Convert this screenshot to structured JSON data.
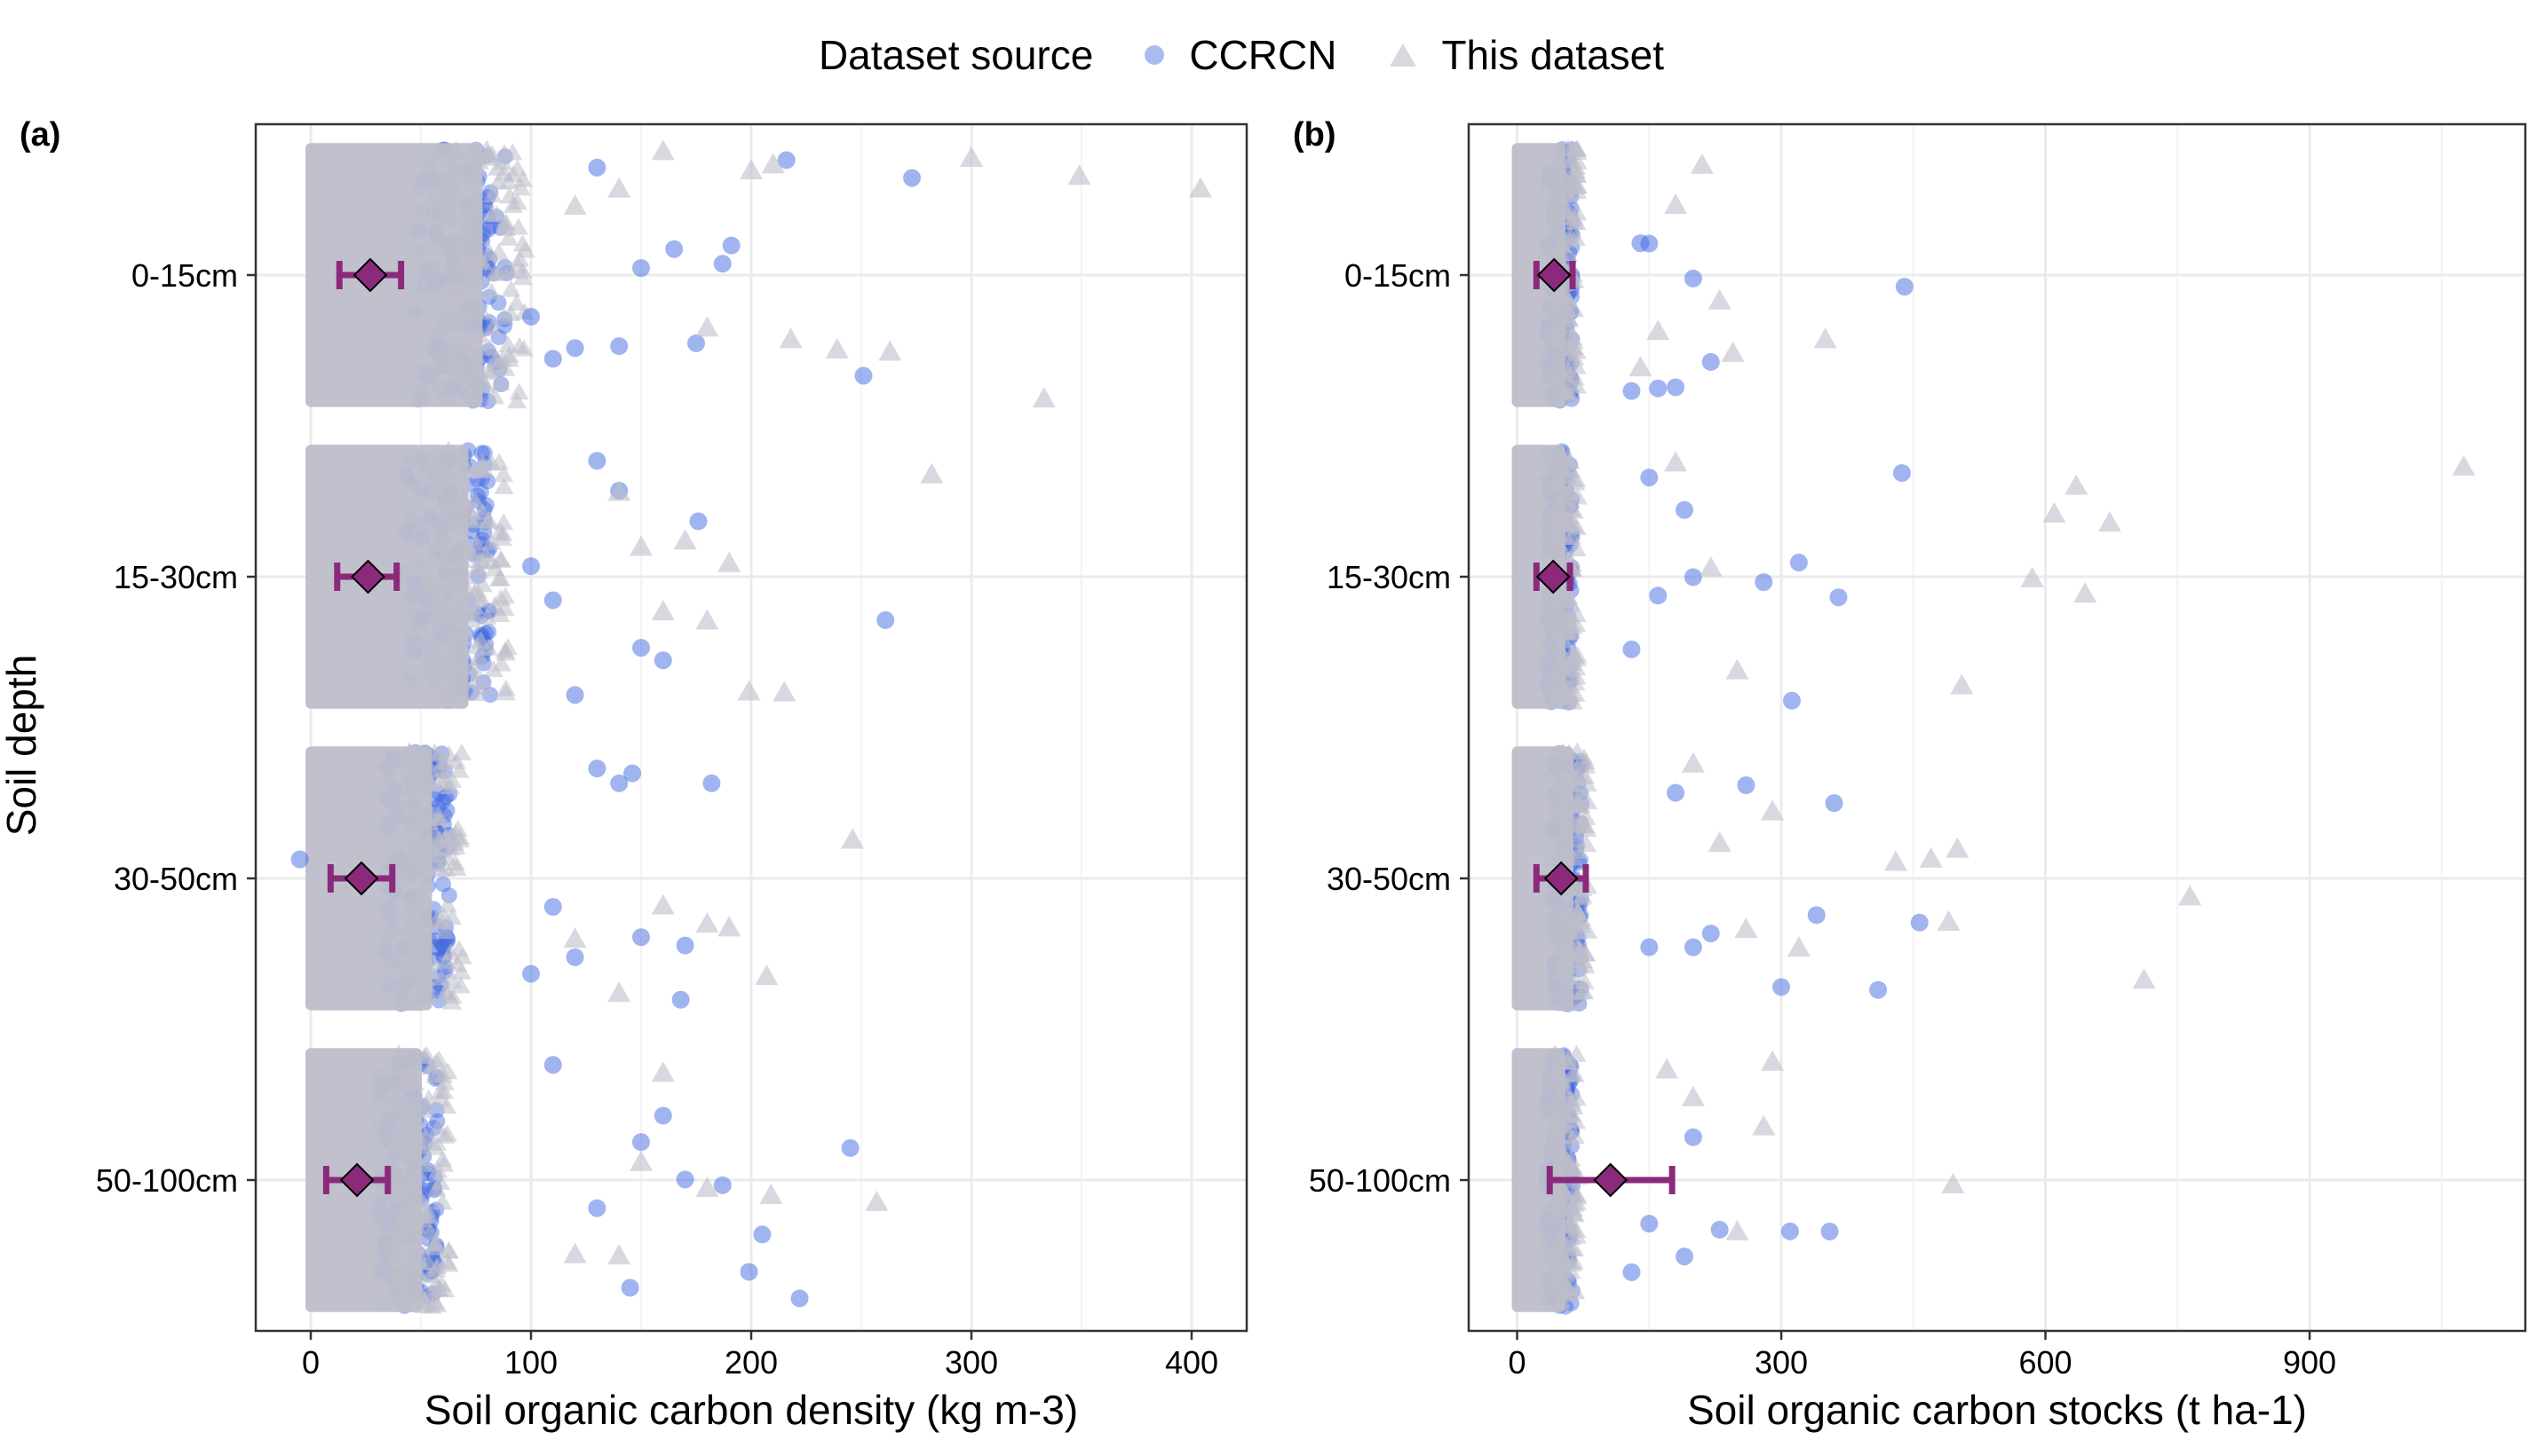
{
  "legend": {
    "title": "Dataset source",
    "items": [
      {
        "label": "CCRCN",
        "shape": "circle",
        "color": "#4169E1"
      },
      {
        "label": "This dataset",
        "shape": "triangle",
        "color": "#BFBFCC"
      }
    ]
  },
  "y_axis_title": "Soil depth",
  "colors": {
    "ccrcn": "#4169E1",
    "this_dataset": "#BEBECB",
    "summary": "#8B2A7A",
    "grid": "#EBEBEB"
  },
  "chart_data": [
    {
      "type": "scatter",
      "panel_label": "(a)",
      "xlabel": "Soil organic carbon density (kg m-3)",
      "ylabel": "Soil depth",
      "categories": [
        "0-15cm",
        "15-30cm",
        "30-50cm",
        "50-100cm"
      ],
      "xlim": [
        -25,
        425
      ],
      "xticks": [
        0,
        100,
        200,
        300,
        400
      ],
      "grid": true,
      "dense_range": [
        [
          0,
          85
        ],
        [
          0,
          78
        ],
        [
          0,
          60
        ],
        [
          0,
          55
        ]
      ],
      "summary": [
        {
          "category": "0-15cm",
          "mean": 27,
          "lo": 13,
          "hi": 41
        },
        {
          "category": "15-30cm",
          "mean": 26,
          "lo": 12,
          "hi": 39
        },
        {
          "category": "30-50cm",
          "mean": 23,
          "lo": 9,
          "hi": 37
        },
        {
          "category": "50-100cm",
          "mean": 21,
          "lo": 7,
          "hi": 35
        }
      ],
      "outliers": [
        {
          "category": "0-15cm",
          "series": "CCRCN",
          "x": [
            191,
            216,
            251,
            273,
            187,
            110,
            130,
            150,
            100,
            165,
            140,
            175,
            120
          ]
        },
        {
          "category": "0-15cm",
          "series": "This dataset",
          "x": [
            218,
            263,
            300,
            333,
            349,
            404,
            239,
            210,
            160,
            180,
            140,
            120,
            200
          ]
        },
        {
          "category": "15-30cm",
          "series": "CCRCN",
          "x": [
            176,
            261,
            150,
            130,
            110,
            140,
            120,
            100,
            160
          ]
        },
        {
          "category": "15-30cm",
          "series": "This dataset",
          "x": [
            282,
            215,
            199,
            180,
            160,
            190,
            150,
            140,
            170
          ]
        },
        {
          "category": "30-50cm",
          "series": "CCRCN",
          "x": [
            182,
            168,
            146,
            130,
            110,
            150,
            100,
            120,
            170,
            140,
            -5
          ]
        },
        {
          "category": "30-50cm",
          "series": "This dataset",
          "x": [
            246,
            207,
            190,
            180,
            160,
            140,
            120
          ]
        },
        {
          "category": "50-100cm",
          "series": "CCRCN",
          "x": [
            245,
            222,
            205,
            199,
            187,
            170,
            160,
            150,
            130,
            110,
            145
          ]
        },
        {
          "category": "50-100cm",
          "series": "This dataset",
          "x": [
            257,
            209,
            180,
            160,
            140,
            150,
            120
          ]
        }
      ]
    },
    {
      "type": "scatter",
      "panel_label": "(b)",
      "xlabel": "Soil organic carbon stocks (t ha-1)",
      "ylabel": "Soil depth",
      "categories": [
        "0-15cm",
        "15-30cm",
        "30-50cm",
        "50-100cm"
      ],
      "xlim": [
        -55,
        1145
      ],
      "xticks": [
        0,
        300,
        600,
        900
      ],
      "grid": true,
      "dense_range": [
        [
          0,
          60
        ],
        [
          0,
          60
        ],
        [
          0,
          70
        ],
        [
          0,
          60
        ]
      ],
      "summary": [
        {
          "category": "0-15cm",
          "mean": 42,
          "lo": 22,
          "hi": 63
        },
        {
          "category": "15-30cm",
          "mean": 41,
          "lo": 22,
          "hi": 60
        },
        {
          "category": "30-50cm",
          "mean": 50,
          "lo": 22,
          "hi": 78
        },
        {
          "category": "50-100cm",
          "mean": 106,
          "lo": 37,
          "hi": 176
        }
      ],
      "outliers": [
        {
          "category": "0-15cm",
          "series": "CCRCN",
          "x": [
            440,
            220,
            200,
            160,
            150,
            180,
            130,
            140
          ]
        },
        {
          "category": "0-15cm",
          "series": "This dataset",
          "x": [
            350,
            245,
            230,
            210,
            180,
            160,
            140
          ]
        },
        {
          "category": "15-30cm",
          "series": "CCRCN",
          "x": [
            312,
            320,
            365,
            437,
            280,
            200,
            190,
            160,
            150,
            130
          ]
        },
        {
          "category": "15-30cm",
          "series": "This dataset",
          "x": [
            1075,
            673,
            645,
            505,
            585,
            610,
            635,
            180,
            220,
            250
          ]
        },
        {
          "category": "30-50cm",
          "series": "CCRCN",
          "x": [
            457,
            410,
            360,
            340,
            300,
            260,
            220,
            200,
            180,
            150
          ]
        },
        {
          "category": "30-50cm",
          "series": "This dataset",
          "x": [
            764,
            712,
            500,
            490,
            470,
            430,
            320,
            290,
            260,
            230,
            200
          ]
        },
        {
          "category": "50-100cm",
          "series": "CCRCN",
          "x": [
            355,
            310,
            230,
            200,
            190,
            150,
            130
          ]
        },
        {
          "category": "50-100cm",
          "series": "This dataset",
          "x": [
            495,
            290,
            280,
            250,
            200,
            170
          ]
        }
      ]
    }
  ]
}
